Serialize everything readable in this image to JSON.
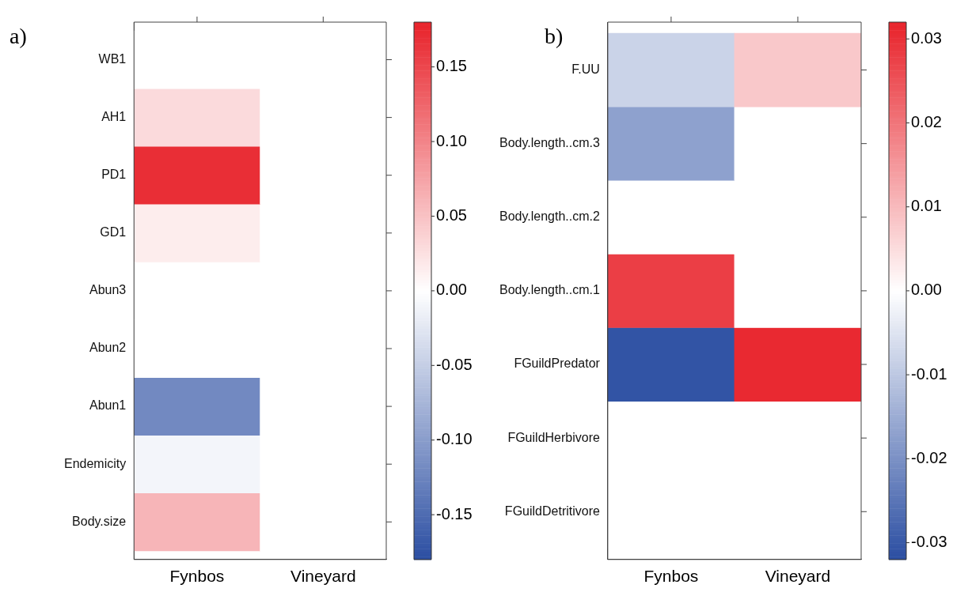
{
  "chart_data": [
    {
      "type": "heatmap",
      "annotations": [
        "a)"
      ],
      "categories": [
        "Fynbos",
        "Vineyard"
      ],
      "y_categories": [
        "WB1",
        "AH1",
        "PD1",
        "GD1",
        "Abun3",
        "Abun2",
        "Abun1",
        "Endemicity",
        "Body.size"
      ],
      "cells": [
        [
          0,
          0
        ],
        [
          0.03,
          0
        ],
        [
          0.17,
          0
        ],
        [
          0.015,
          0
        ],
        [
          0,
          0
        ],
        [
          0,
          0
        ],
        [
          -0.12,
          0
        ],
        [
          -0.01,
          0
        ],
        [
          0.06,
          0
        ]
      ],
      "clim": [
        -0.18,
        0.18
      ],
      "cticks": [
        0.15,
        {
          "value": 0.1,
          "label": "0.10"
        },
        0.05,
        {
          "value": 0,
          "label": "0.00"
        },
        -0.05,
        {
          "value": -0.1,
          "label": "-0.10"
        },
        -0.15
      ]
    },
    {
      "type": "heatmap",
      "annotations": [
        "b)"
      ],
      "categories": [
        "Fynbos",
        "Vineyard"
      ],
      "y_categories": [
        "F.UU",
        "Body.length..cm.3",
        "Body.length..cm.2",
        "Body.length..cm.1",
        "FGuildPredator",
        "FGuildHerbivore",
        "FGuildDetritivore"
      ],
      "cells": [
        [
          -0.008,
          0.008
        ],
        [
          -0.017,
          0
        ],
        [
          0,
          0
        ],
        [
          0.028,
          0
        ],
        [
          -0.031,
          0.031
        ],
        [
          0,
          0
        ],
        [
          0,
          0
        ]
      ],
      "clim": [
        -0.032,
        0.032
      ],
      "cticks": [
        0.03,
        0.02,
        0.01,
        {
          "value": 0,
          "label": "0.00"
        },
        -0.01,
        -0.02,
        -0.03
      ]
    }
  ]
}
